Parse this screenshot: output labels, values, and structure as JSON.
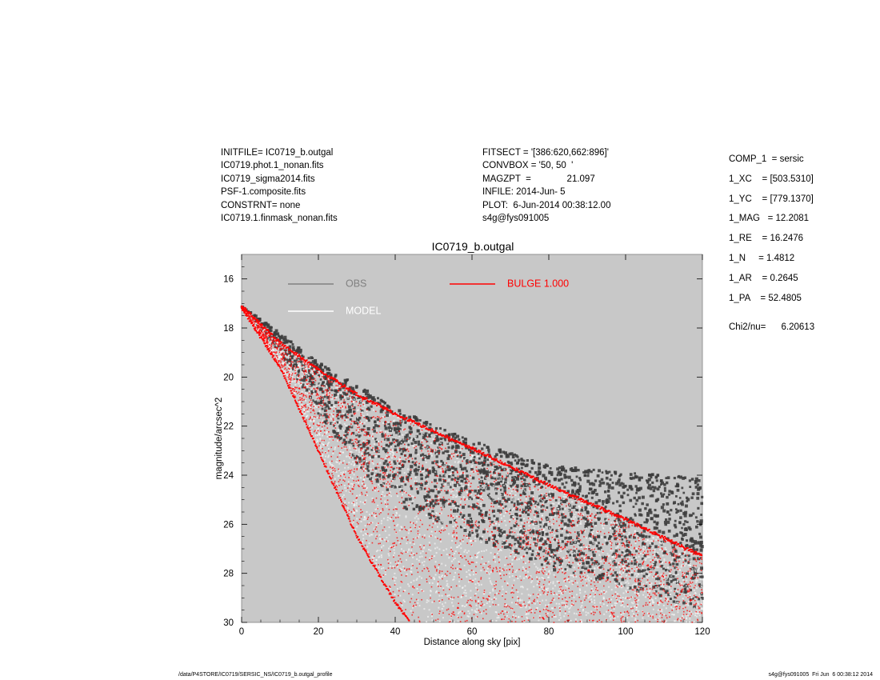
{
  "header_left": [
    "INITFILE= IC0719_b.outgal",
    "IC0719.phot.1_nonan.fits",
    "IC0719_sigma2014.fits",
    "PSF-1.composite.fits",
    "CONSTRNT= none",
    "IC0719.1.finmask_nonan.fits"
  ],
  "header_mid": [
    "FITSECT = '[386:620,662:896]'",
    "CONVBOX = '50, 50  '",
    "MAGZPT  =              21.097",
    "INFILE: 2014-Jun- 5",
    "PLOT:  6-Jun-2014 00:38:12.00",
    "s4g@fys091005"
  ],
  "header_right": [
    "COMP_1  = sersic",
    "1_XC    = [503.5310]",
    "1_YC    = [779.1370]",
    "1_MAG   = 12.2081",
    "1_RE    = 16.2476",
    "1_N     = 1.4812",
    "1_AR    = 0.2645",
    "1_PA    = 52.4805"
  ],
  "chi2": "Chi2/nu=      6.20613",
  "footer_left": "/data/P4STORE/IC0719/SERSIC_NS/IC0719_b.outgal_profile",
  "footer_right": "s4g@fys091005  Fri Jun  6 00:38:12 2014",
  "colors": {
    "background": "#c8c8c8",
    "obs": "#3d3d3d",
    "model": "#ffffff",
    "bulge": "#ff0000",
    "legend_obs": "#808080"
  },
  "chart_data": {
    "type": "scatter",
    "title": "IC0719_b.outgal",
    "xlabel": "Distance along sky [pix]",
    "ylabel": "magnitude/arcsec^2",
    "xlim": [
      0,
      120
    ],
    "ylim": [
      30,
      15
    ],
    "y_inverted": true,
    "xticks": [
      0,
      20,
      40,
      60,
      80,
      100,
      120
    ],
    "yticks": [
      16,
      18,
      20,
      22,
      24,
      26,
      28,
      30
    ],
    "legend": [
      {
        "name": "OBS",
        "color": "#808080"
      },
      {
        "name": "MODEL",
        "color": "#ffffff"
      },
      {
        "name": "BULGE  1.000",
        "color": "#ff0000"
      }
    ],
    "series": [
      {
        "name": "OBS",
        "kind": "points",
        "upper_envelope": [
          [
            0,
            17.1
          ],
          [
            10,
            18.2
          ],
          [
            20,
            19.4
          ],
          [
            30,
            20.3
          ],
          [
            40,
            21.3
          ],
          [
            60,
            22.6
          ],
          [
            80,
            23.6
          ],
          [
            100,
            23.9
          ],
          [
            120,
            24.1
          ]
        ],
        "lower_envelope": [
          [
            0,
            17.2
          ],
          [
            10,
            19.0
          ],
          [
            20,
            21.5
          ],
          [
            30,
            23.6
          ],
          [
            40,
            25.2
          ],
          [
            60,
            26.5
          ],
          [
            80,
            27.8
          ],
          [
            100,
            28.6
          ],
          [
            120,
            29.5
          ]
        ]
      },
      {
        "name": "MODEL / BULGE",
        "kind": "points",
        "upper_envelope": [
          [
            0,
            17.1
          ],
          [
            10,
            18.6
          ],
          [
            20,
            19.7
          ],
          [
            30,
            20.7
          ],
          [
            40,
            21.5
          ],
          [
            60,
            22.9
          ],
          [
            80,
            24.4
          ],
          [
            100,
            25.8
          ],
          [
            120,
            27.3
          ]
        ],
        "lower_envelope": [
          [
            0,
            17.2
          ],
          [
            10,
            19.6
          ],
          [
            20,
            23.0
          ],
          [
            30,
            26.5
          ],
          [
            40,
            29.2
          ],
          [
            44,
            30.0
          ]
        ]
      }
    ]
  }
}
